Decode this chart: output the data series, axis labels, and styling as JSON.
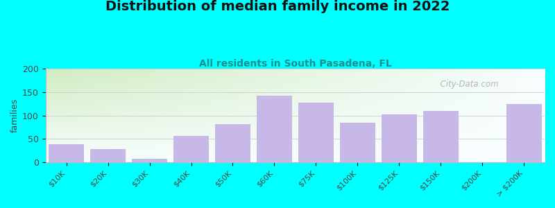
{
  "title": "Distribution of median family income in 2022",
  "subtitle": "All residents in South Pasadena, FL",
  "categories": [
    "$10K",
    "$20K",
    "$30K",
    "$40K",
    "$50K",
    "$60K",
    "$75K",
    "$100K",
    "$125K",
    "$150K",
    "$200K",
    "> $200K"
  ],
  "values": [
    38,
    28,
    8,
    57,
    82,
    143,
    127,
    84,
    103,
    110,
    0,
    125
  ],
  "bar_color": "#c8b8e8",
  "background_color": "#00ffff",
  "plot_bg_topleft": "#d0ecc0",
  "plot_bg_bottomright": "#f8f8ff",
  "title_fontsize": 14,
  "subtitle_fontsize": 10,
  "ylabel": "families",
  "ylim": [
    0,
    200
  ],
  "yticks": [
    0,
    50,
    100,
    150,
    200
  ],
  "watermark": "  City-Data.com"
}
